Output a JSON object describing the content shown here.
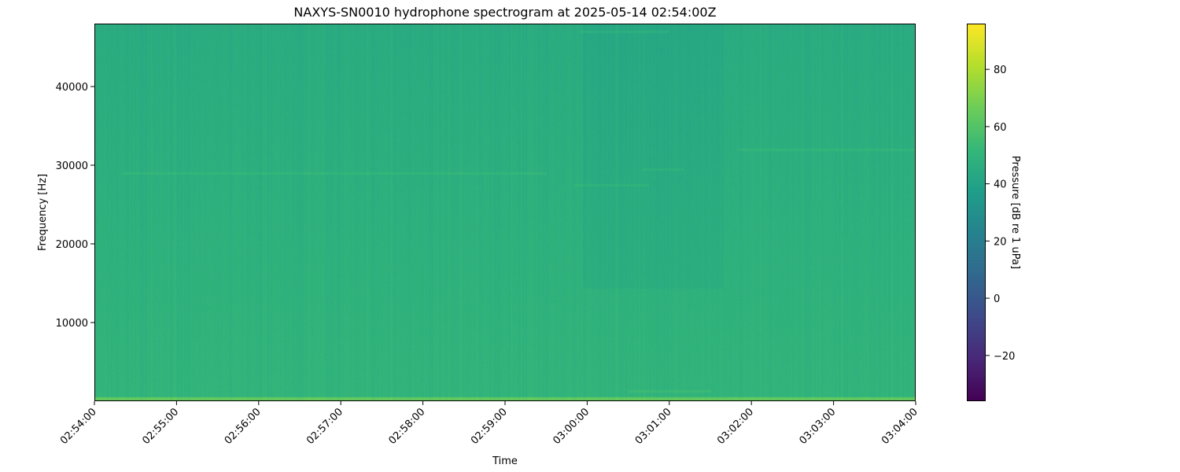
{
  "chart_data": {
    "type": "heatmap",
    "title": "NAXYS-SN0010 hydrophone spectrogram at 2025-05-14 02:54:00Z",
    "xlabel": "Time",
    "ylabel": "Frequency [Hz]",
    "x_ticks": [
      "02:54:00",
      "02:55:00",
      "02:56:00",
      "02:57:00",
      "02:58:00",
      "02:59:00",
      "03:00:00",
      "03:01:00",
      "03:02:00",
      "03:03:00",
      "03:04:00"
    ],
    "xlim": [
      "02:54:00",
      "03:04:00"
    ],
    "y_ticks": [
      10000,
      20000,
      30000,
      40000
    ],
    "ylim": [
      0,
      48000
    ],
    "colormap": "viridis",
    "colorbar": {
      "label": "Pressure [dB re 1 uPa]",
      "ticks": [
        -20,
        0,
        20,
        40,
        60,
        80
      ],
      "tick_labels": [
        "−20",
        "0",
        "20",
        "40",
        "60",
        "80"
      ],
      "range": [
        -36,
        96
      ]
    },
    "typical_level_db": 45,
    "features": [
      {
        "start": "02:54:20",
        "end": "02:59:30",
        "freq_hz": 29000
      },
      {
        "start": "02:59:50",
        "end": "03:00:45",
        "freq_hz": 27500
      },
      {
        "start": "03:00:40",
        "end": "03:01:10",
        "freq_hz": 29500
      },
      {
        "start": "03:01:50",
        "end": "03:04:00",
        "freq_hz": 32000
      },
      {
        "start": "02:59:55",
        "end": "03:01:00",
        "freq_hz": 47000
      },
      {
        "start": "03:00:30",
        "end": "03:01:30",
        "freq_hz": 1300
      }
    ],
    "grid": false
  }
}
